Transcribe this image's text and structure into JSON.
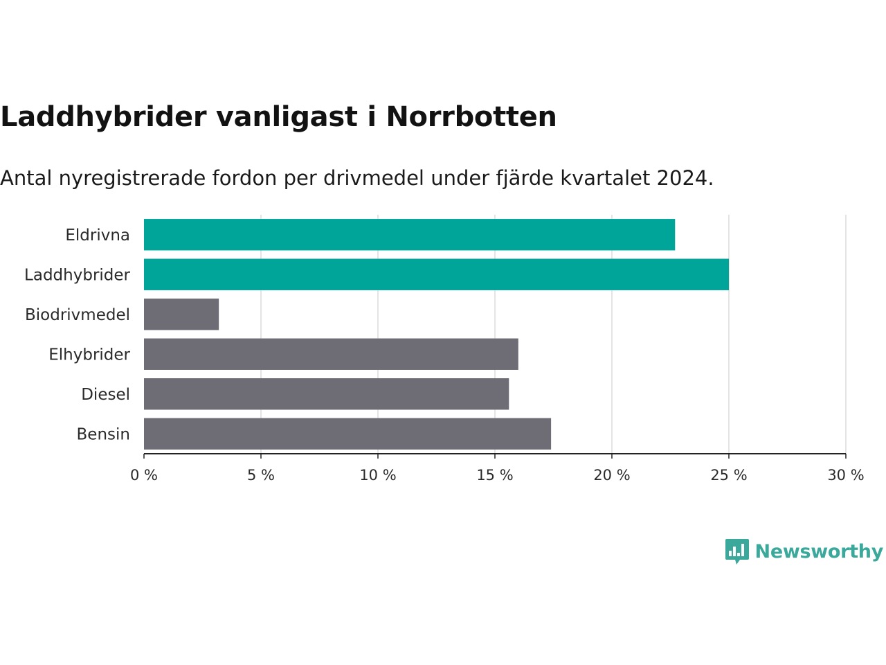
{
  "header": {
    "title": "Laddhybrider vanligast i Norrbotten",
    "subtitle": "Antal nyregistrerade fordon per drivmedel under fjärde kvartalet 2024."
  },
  "brand": {
    "name": "Newsworthy",
    "icon": "newsworthy-logo-icon",
    "color": "#3aa89a"
  },
  "colors": {
    "highlight": "#00a59a",
    "default": "#6e6d75",
    "grid": "#dcdcdc",
    "axis": "#222222"
  },
  "chart_data": {
    "type": "bar",
    "orientation": "horizontal",
    "categories": [
      "Eldrivna",
      "Laddhybrider",
      "Biodrivmedel",
      "Elhybrider",
      "Diesel",
      "Bensin"
    ],
    "values": [
      22.7,
      25.0,
      3.2,
      16.0,
      15.6,
      17.4
    ],
    "highlighted": [
      true,
      true,
      false,
      false,
      false,
      false
    ],
    "xlim": [
      0,
      30
    ],
    "ticks": [
      0,
      5,
      10,
      15,
      20,
      25,
      30
    ],
    "tick_labels": [
      "0 %",
      "5 %",
      "10 %",
      "15 %",
      "20 %",
      "25 %",
      "30 %"
    ],
    "grid": true,
    "title": "Laddhybrider vanligast i Norrbotten",
    "xlabel": "",
    "ylabel": ""
  }
}
